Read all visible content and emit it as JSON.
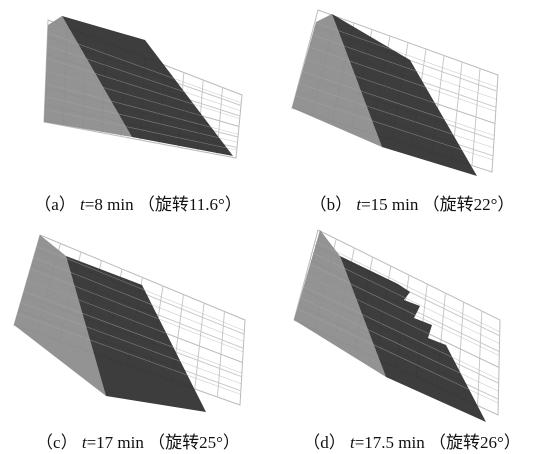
{
  "panels": [
    {
      "label": "（a）",
      "var": "t",
      "time": "=8 min",
      "note": "（旋转11.6°）"
    },
    {
      "label": "（b）",
      "var": "t",
      "time": "=15 min",
      "note": "（旋转22°）"
    },
    {
      "label": "（c）",
      "var": "t",
      "time": "=17 min",
      "note": "（旋转25°）"
    },
    {
      "label": "（d）",
      "var": "t",
      "time": "=17.5 min",
      "note": "（旋转26°）"
    }
  ]
}
